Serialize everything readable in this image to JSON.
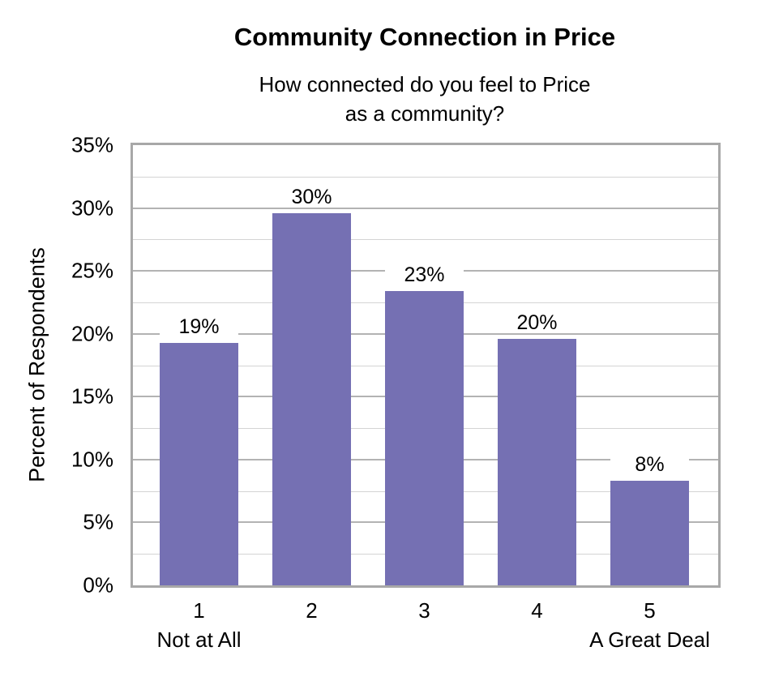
{
  "chart_data": {
    "type": "bar",
    "title": "Community Connection in Price",
    "subtitle": [
      "How connected do you feel to Price",
      "as a community?"
    ],
    "xlabel": "",
    "ylabel": "Percent of Respondents",
    "categories": [
      "1",
      "2",
      "3",
      "4",
      "5"
    ],
    "category_sublabels": {
      "1": "Not at All",
      "5": "A Great Deal"
    },
    "values": [
      19,
      30,
      23,
      20,
      8
    ],
    "value_labels": [
      "19%",
      "30%",
      "23%",
      "20%",
      "8%"
    ],
    "estimated_bar_heights": [
      19.3,
      29.6,
      23.4,
      19.6,
      8.3
    ],
    "ylim": [
      0,
      35
    ],
    "yticks": [
      "0%",
      "5%",
      "10%",
      "15%",
      "20%",
      "25%",
      "30%",
      "35%"
    ],
    "grid": true,
    "minor_grid": true,
    "legend": null,
    "bar_color": "#7570b3"
  },
  "colors": {
    "bar": "#7570b3",
    "border": "#a8a8a8",
    "grid_major": "#b3b3b3",
    "grid_minor": "#d4d4d4"
  }
}
